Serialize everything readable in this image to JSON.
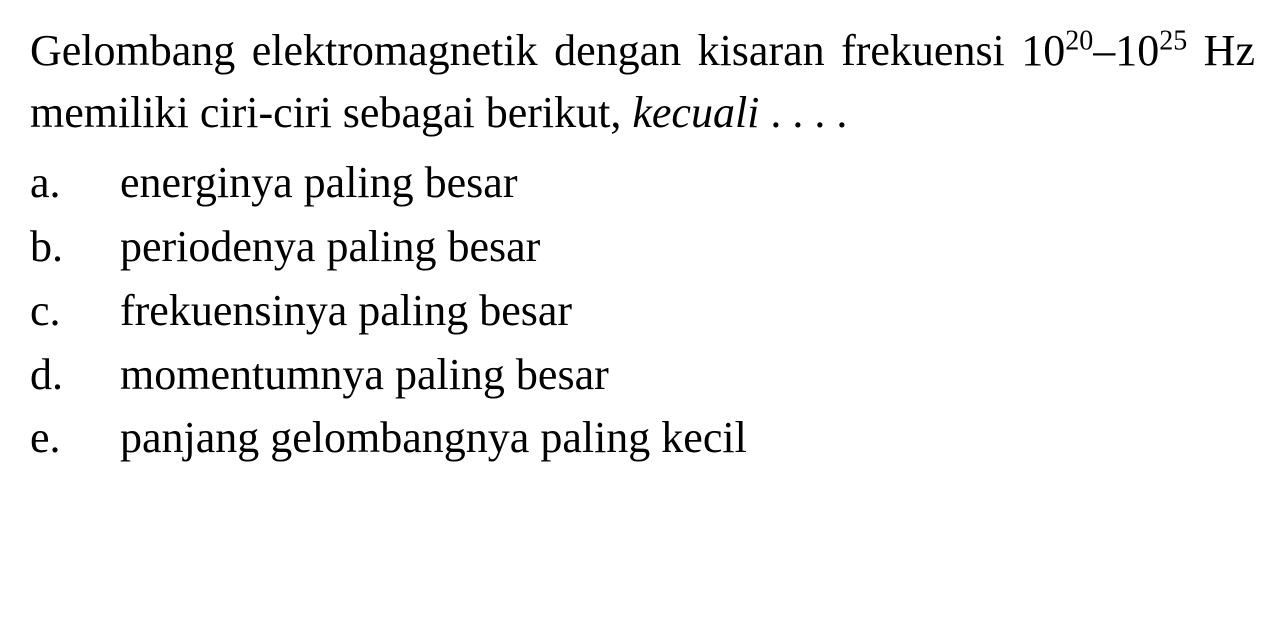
{
  "question": {
    "line1_part1": "Gelombang elektromagnetik dengan kisaran frekuensi 10",
    "exp1": "20",
    "dash": "–10",
    "exp2": "25",
    "line1_part2": " Hz memiliki ciri-ciri sebagai berikut, ",
    "kecuali": "kecuali",
    "dots": " . . . ."
  },
  "options": [
    {
      "letter": "a.",
      "text": "energinya paling besar"
    },
    {
      "letter": "b.",
      "text": "periodenya paling besar"
    },
    {
      "letter": "c.",
      "text": "frekuensinya paling besar"
    },
    {
      "letter": "d.",
      "text": "momentumnya paling besar"
    },
    {
      "letter": "e.",
      "text": "panjang gelombangnya paling kecil"
    }
  ],
  "styling": {
    "background_color": "#ffffff",
    "text_color": "#000000",
    "font_family": "Times New Roman",
    "question_fontsize": 44,
    "sup_fontsize": 28,
    "line_height": 1.4,
    "option_letter_width": 90
  }
}
